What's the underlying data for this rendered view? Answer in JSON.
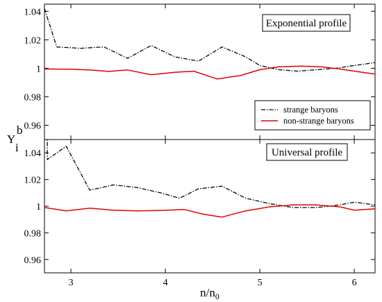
{
  "chart_data": [
    {
      "type": "line",
      "panel": "top",
      "annotation": "Exponential profile",
      "xlim": [
        2.72,
        6.22
      ],
      "ylim": [
        0.95,
        1.045
      ],
      "yticks": [
        0.96,
        0.98,
        1,
        1.02,
        1.04
      ],
      "ytick_labels": [
        "0.96",
        "0.98",
        "1",
        "1.02",
        "1.04"
      ],
      "series": [
        {
          "name": "strange baryons",
          "color": "#000000",
          "style": "dash-dot",
          "x": [
            2.72,
            2.85,
            3.1,
            3.35,
            3.6,
            3.85,
            4.1,
            4.35,
            4.6,
            4.85,
            5.0,
            5.2,
            5.4,
            5.6,
            5.8,
            6.0,
            6.22
          ],
          "y": [
            1.042,
            1.015,
            1.014,
            1.015,
            1.007,
            1.016,
            1.008,
            1.005,
            1.015,
            1.008,
            1.002,
            0.999,
            0.998,
            0.999,
            1.0,
            1.002,
            1.004
          ]
        },
        {
          "name": "non-strange baryons",
          "color": "#e00000",
          "style": "solid",
          "x": [
            2.72,
            3.0,
            3.2,
            3.4,
            3.6,
            3.85,
            4.1,
            4.3,
            4.55,
            4.8,
            5.0,
            5.2,
            5.45,
            5.65,
            5.85,
            6.05,
            6.22
          ],
          "y": [
            0.9995,
            0.9993,
            0.9988,
            0.9978,
            0.9988,
            0.9955,
            0.9972,
            0.998,
            0.9925,
            0.995,
            0.999,
            1.001,
            1.0015,
            1.001,
            0.9995,
            0.9975,
            0.996
          ]
        }
      ]
    },
    {
      "type": "line",
      "panel": "bottom",
      "annotation": "Universal profile",
      "xlim": [
        2.72,
        6.22
      ],
      "ylim": [
        0.95,
        1.05
      ],
      "yticks": [
        0.96,
        0.98,
        1,
        1.02,
        1.04
      ],
      "ytick_labels": [
        "0.96",
        "0.98",
        "1",
        "1.02",
        "1.04"
      ],
      "xticks": [
        3,
        4,
        5,
        6
      ],
      "xtick_labels": [
        "3",
        "4",
        "5",
        "6"
      ],
      "series": [
        {
          "name": "strange baryons",
          "color": "#000000",
          "style": "dash-dot",
          "x": [
            2.72,
            2.75,
            2.75,
            2.95,
            3.2,
            3.45,
            3.7,
            3.95,
            4.15,
            4.35,
            4.6,
            4.85,
            5.1,
            5.35,
            5.6,
            5.85,
            6.0,
            6.22
          ],
          "y": [
            1.052,
            1.052,
            1.035,
            1.045,
            1.012,
            1.016,
            1.014,
            1.01,
            1.006,
            1.013,
            1.015,
            1.006,
            1.002,
            0.999,
            0.999,
            1.001,
            1.003,
            1.001
          ]
        },
        {
          "name": "non-strange baryons",
          "color": "#e00000",
          "style": "solid",
          "x": [
            2.72,
            2.95,
            3.2,
            3.45,
            3.7,
            3.95,
            4.2,
            4.4,
            4.6,
            4.85,
            5.1,
            5.35,
            5.6,
            5.85,
            6.0,
            6.22
          ],
          "y": [
            0.999,
            0.9965,
            0.9985,
            0.997,
            0.9965,
            0.9968,
            0.9975,
            0.994,
            0.9918,
            0.9965,
            0.9995,
            1.001,
            1.001,
            0.9995,
            0.997,
            0.998
          ]
        }
      ]
    }
  ],
  "xlabel_base": "n/n",
  "xlabel_sub": "0",
  "ylabel_base": "Y",
  "ylabel_sup": "b",
  "ylabel_sub": "i",
  "legend": {
    "placement": "center-right of top panel",
    "items": [
      "strange baryons",
      "non-strange baryons"
    ]
  }
}
